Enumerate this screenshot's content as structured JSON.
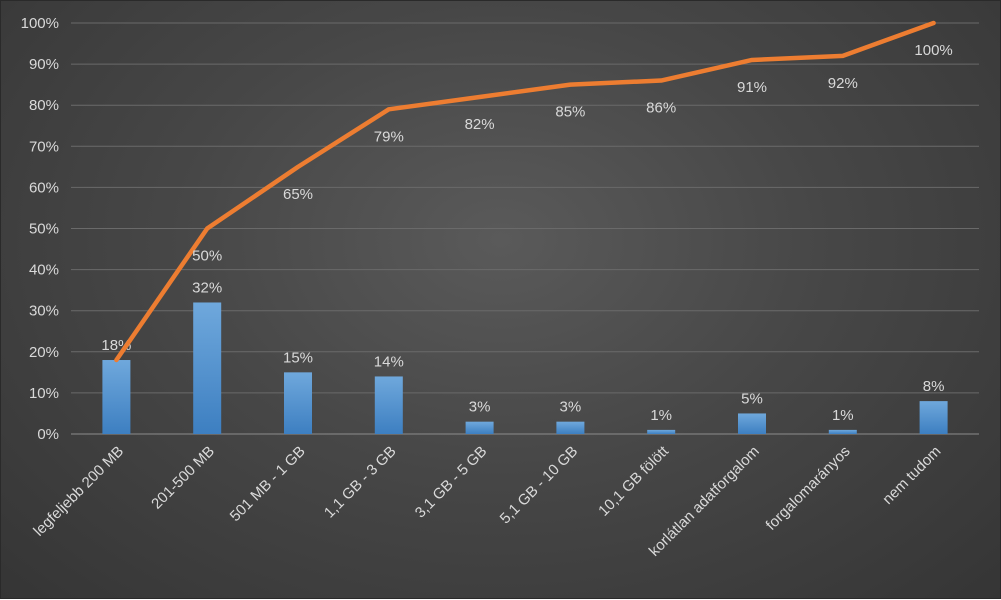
{
  "chart_data": {
    "type": "bar",
    "categories": [
      "legfeljebb 200 MB",
      "201-500 MB",
      "501 MB - 1 GB",
      "1,1 GB - 3 GB",
      "3,1 GB - 5 GB",
      "5,1 GB - 10 GB",
      "10,1 GB fölött",
      "korlátlan adatforgalom",
      "forgalomarányos",
      "nem tudom"
    ],
    "series": [
      {
        "type": "bar",
        "values": [
          18,
          32,
          15,
          14,
          3,
          3,
          1,
          5,
          1,
          8
        ],
        "labels": [
          "18%",
          "32%",
          "15%",
          "14%",
          "3%",
          "3%",
          "1%",
          "5%",
          "1%",
          "8%"
        ],
        "color": "#5b9bd5"
      },
      {
        "type": "line",
        "values": [
          18,
          50,
          65,
          79,
          82,
          85,
          86,
          91,
          92,
          100
        ],
        "labels": [
          "",
          "50%",
          "65%",
          "79%",
          "82%",
          "85%",
          "86%",
          "91%",
          "92%",
          "100%"
        ],
        "color": "#ed7d31"
      }
    ],
    "yticks": [
      "0%",
      "10%",
      "20%",
      "30%",
      "40%",
      "50%",
      "60%",
      "70%",
      "80%",
      "90%",
      "100%"
    ],
    "ylim": [
      0,
      100
    ],
    "grid": true,
    "legend": "none"
  }
}
